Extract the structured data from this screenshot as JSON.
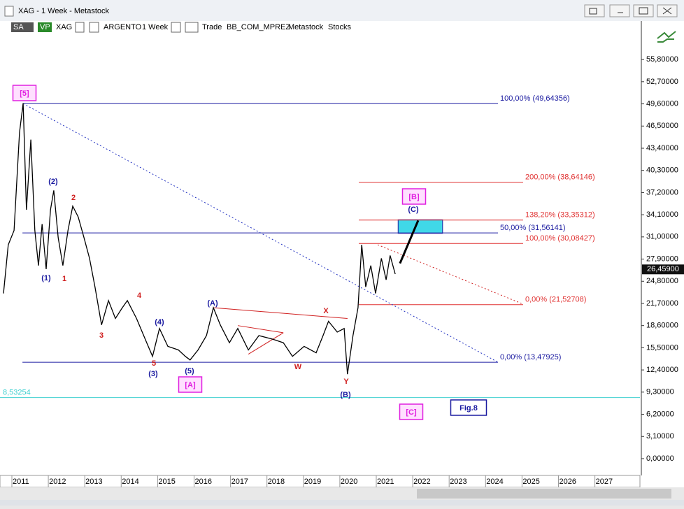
{
  "window": {
    "title": "XAG - 1 Week - Metastock",
    "toolbar": [
      "SA",
      "VP",
      "XAG",
      "ARGENTO",
      "1 Week",
      "Trade",
      "BB_COM_MPREZ",
      "Metastock",
      "Stocks"
    ]
  },
  "chart_data": {
    "type": "line",
    "series": [
      {
        "color": "#000000",
        "x": [
          2010.77,
          2010.9,
          2011.06,
          2011.21,
          2011.31,
          2011.4,
          2011.52,
          2011.63,
          2011.73,
          2011.83,
          2011.94,
          2012.06,
          2012.15,
          2012.27,
          2012.4,
          2012.54,
          2012.67,
          2012.82,
          2012.98,
          2013.13,
          2013.28,
          2013.46,
          2013.65,
          2013.84,
          2014.03,
          2014.17,
          2014.42,
          2014.7,
          2014.86,
          2015.05,
          2015.28,
          2015.57,
          2015.76,
          2015.89,
          2016.11,
          2016.34,
          2016.53,
          2016.72,
          2016.97,
          2017.2,
          2017.49,
          2017.78,
          2018.16,
          2018.45,
          2018.7,
          2019.02,
          2019.35,
          2019.54,
          2019.69,
          2019.93,
          2020.12,
          2020.21,
          2020.36,
          2020.5,
          2020.6,
          2020.71,
          2020.85,
          2020.98,
          2021.14,
          2021.27,
          2021.38,
          2021.52
        ],
        "values": [
          23.1,
          29.9,
          31.9,
          45.6,
          49.7,
          34.8,
          44.6,
          31.9,
          27.0,
          32.8,
          26.5,
          34.8,
          37.5,
          30.9,
          27.0,
          31.9,
          35.3,
          33.8,
          30.9,
          28.0,
          24.0,
          18.7,
          22.1,
          19.6,
          21.1,
          22.1,
          19.6,
          16.2,
          14.3,
          18.2,
          15.7,
          15.2,
          14.3,
          13.8,
          15.2,
          17.2,
          21.1,
          18.7,
          16.2,
          18.2,
          15.2,
          17.2,
          16.7,
          16.2,
          14.3,
          15.7,
          14.8,
          17.2,
          19.2,
          17.7,
          18.2,
          11.8,
          17.2,
          21.1,
          29.9,
          24.0,
          27.0,
          23.1,
          28.0,
          25.0,
          28.4,
          25.8
        ]
      }
    ],
    "last_price": {
      "value": 26.459,
      "label": "26,45900"
    },
    "xlim": [
      2010.674,
      2028.236
    ],
    "xticks": [
      2011,
      2012,
      2013,
      2014,
      2015,
      2016,
      2017,
      2018,
      2019,
      2020,
      2021,
      2022,
      2023,
      2024,
      2025,
      2026,
      2027
    ],
    "ylim": [
      -2.35,
      61.19
    ],
    "yticks": [
      {
        "value": 0,
        "label": "0,00000"
      },
      {
        "value": 3.1,
        "label": "3,10000"
      },
      {
        "value": 6.2,
        "label": "6,20000"
      },
      {
        "value": 9.3,
        "label": "9,30000"
      },
      {
        "value": 12.4,
        "label": "12,40000"
      },
      {
        "value": 15.5,
        "label": "15,50000"
      },
      {
        "value": 18.6,
        "label": "18,60000"
      },
      {
        "value": 21.7,
        "label": "21,70000"
      },
      {
        "value": 24.8,
        "label": "24,80000"
      },
      {
        "value": 27.9,
        "label": "27,90000"
      },
      {
        "value": 31,
        "label": "31,00000"
      },
      {
        "value": 34.1,
        "label": "34,10000"
      },
      {
        "value": 37.2,
        "label": "37,20000"
      },
      {
        "value": 40.3,
        "label": "40,30000"
      },
      {
        "value": 43.4,
        "label": "43,40000"
      },
      {
        "value": 46.5,
        "label": "46,50000"
      },
      {
        "value": 49.6,
        "label": "49,60000"
      },
      {
        "value": 52.7,
        "label": "52,70000"
      },
      {
        "value": 55.8,
        "label": "55,80000"
      }
    ],
    "levels": [
      {
        "label": "100,00% (49,64356)",
        "value": 49.64356,
        "x": [
          2011.31,
          2024.34
        ],
        "color": "#1a1aa0"
      },
      {
        "label": "50,00% (31,56141)",
        "value": 31.56141,
        "x": [
          2011.29,
          2024.34
        ],
        "color": "#1a1aa0"
      },
      {
        "label": "0,00% (13,47925)",
        "value": 13.47925,
        "x": [
          2011.29,
          2024.34
        ],
        "color": "#1a1aa0"
      },
      {
        "label": "200,00% (38,64146)",
        "value": 38.64146,
        "x": [
          2020.52,
          2025.03
        ],
        "color": "#e03030"
      },
      {
        "label": "138,20% (33,35312)",
        "value": 33.35312,
        "x": [
          2020.52,
          2025.03
        ],
        "color": "#e03030"
      },
      {
        "label": "100,00% (30,08427)",
        "value": 30.08427,
        "x": [
          2020.52,
          2025.03
        ],
        "color": "#e03030"
      },
      {
        "label": "0,00% (21,52708)",
        "value": 21.52708,
        "x": [
          2020.52,
          2025.03
        ],
        "color": "#e03030"
      },
      {
        "label": "8,53254",
        "value": 8.53254,
        "color": "#40d0d0"
      }
    ],
    "trendlines": [
      {
        "color": "#2030c0",
        "style": "dotted",
        "x": [
          2011.31,
          2024.34
        ],
        "y": [
          49.64,
          13.48
        ]
      },
      {
        "color": "#d02020",
        "style": "dotted",
        "x": [
          2021.04,
          2025.03
        ],
        "y": [
          29.9,
          21.6
        ]
      },
      {
        "color": "#d02020",
        "style": "solid",
        "x": [
          2016.53,
          2020.21
        ],
        "y": [
          21.1,
          19.6
        ]
      },
      {
        "color": "#d02020",
        "style": "solid",
        "x": [
          2017.2,
          2018.45
        ],
        "y": [
          18.6,
          17.6
        ]
      },
      {
        "color": "#d02020",
        "style": "solid",
        "x": [
          2017.49,
          2018.45
        ],
        "y": [
          14.6,
          17.6
        ]
      },
      {
        "color": "#000000",
        "style": "thick",
        "x": [
          2021.65,
          2022.15
        ],
        "y": [
          27.3,
          33.3
        ]
      }
    ],
    "zones": [
      {
        "color": "#40d8e8",
        "x": [
          2021.6,
          2022.82
        ],
        "y": [
          31.5,
          33.4
        ]
      }
    ],
    "annotations": [
      {
        "text": "[5]",
        "color": "#e020e0",
        "boxed": true
      },
      {
        "text": "(2)",
        "color": "#1a1aa0"
      },
      {
        "text": "2",
        "color": "#d02020"
      },
      {
        "text": "(1)",
        "color": "#1a1aa0"
      },
      {
        "text": "1",
        "color": "#d02020"
      },
      {
        "text": "3",
        "color": "#d02020"
      },
      {
        "text": "4",
        "color": "#d02020"
      },
      {
        "text": "(4)",
        "color": "#1a1aa0"
      },
      {
        "text": "5",
        "color": "#d02020"
      },
      {
        "text": "(3)",
        "color": "#1a1aa0"
      },
      {
        "text": "(5)",
        "color": "#1a1aa0"
      },
      {
        "text": "[A]",
        "color": "#e020e0",
        "boxed": true
      },
      {
        "text": "(A)",
        "color": "#1a1aa0"
      },
      {
        "text": "X",
        "color": "#d02020"
      },
      {
        "text": "W",
        "color": "#d02020"
      },
      {
        "text": "Y",
        "color": "#d02020"
      },
      {
        "text": "(B)",
        "color": "#1a1aa0"
      },
      {
        "text": "[B]",
        "color": "#e020e0",
        "boxed": true
      },
      {
        "text": "(C)",
        "color": "#1a1aa0"
      },
      {
        "text": "[C]",
        "color": "#e020e0",
        "boxed": true
      },
      {
        "text": "Fig.8",
        "color": "#1a1aa0",
        "boxed": true
      }
    ]
  }
}
